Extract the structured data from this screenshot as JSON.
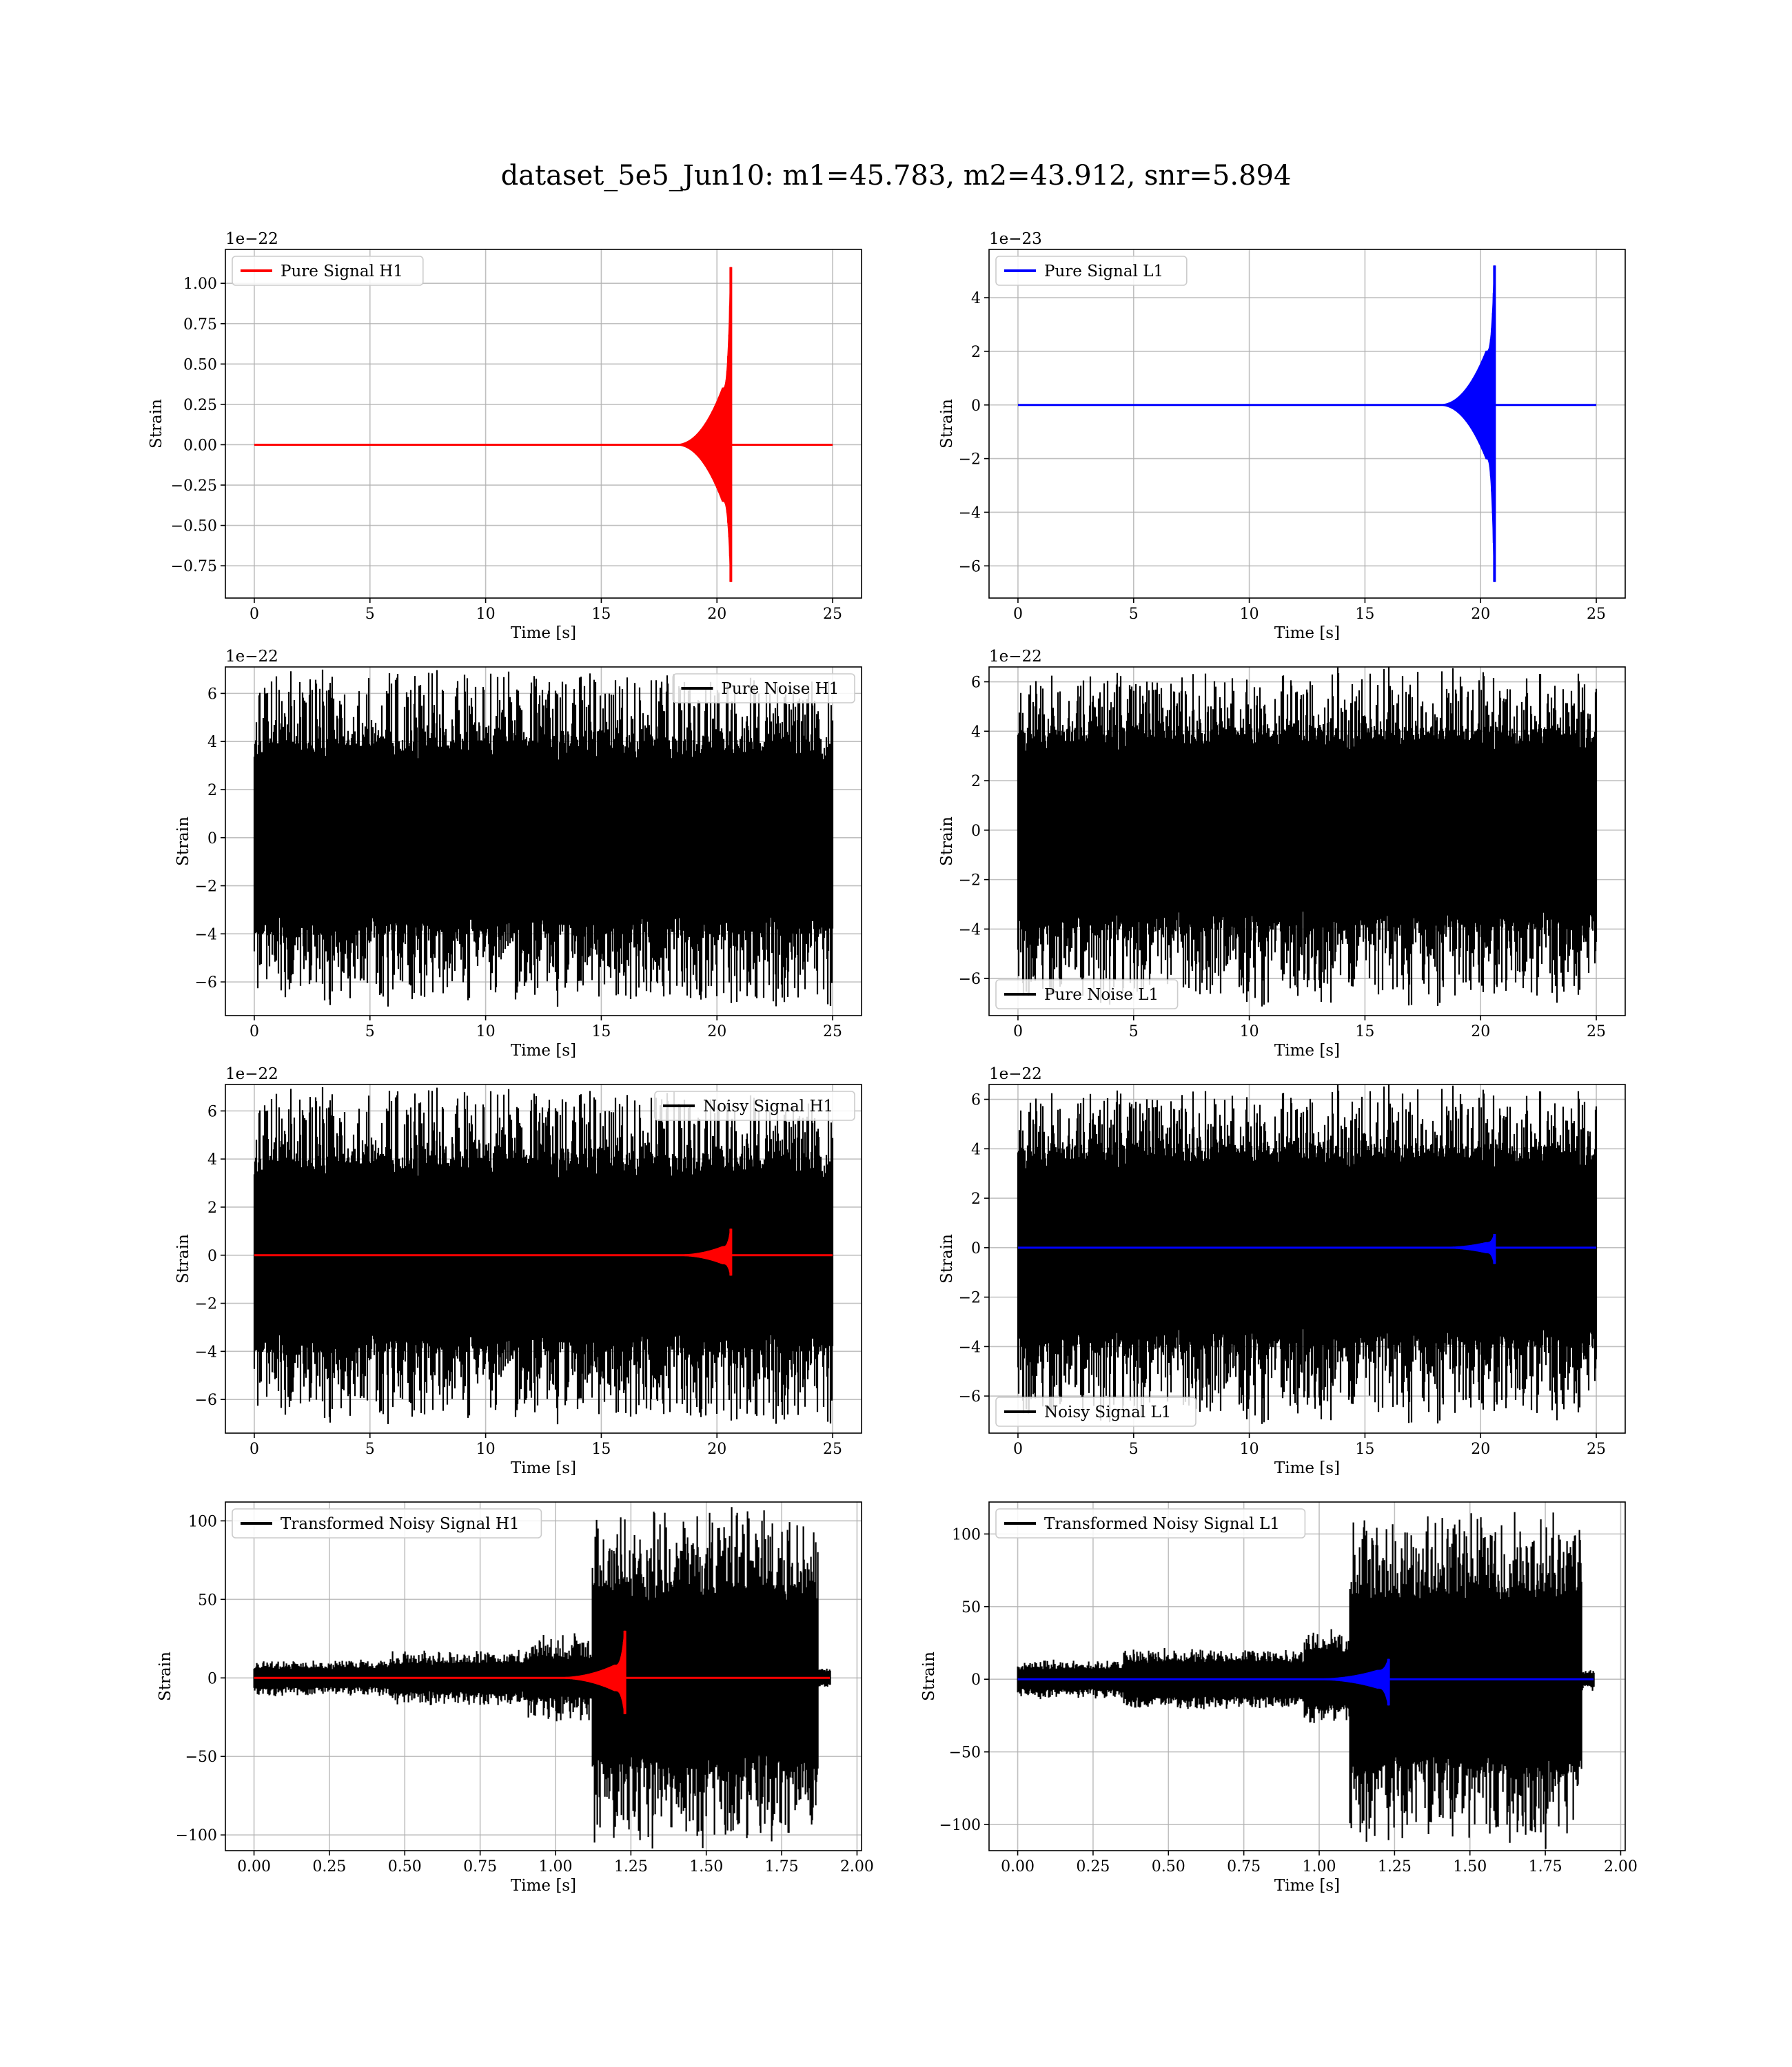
{
  "figure": {
    "title": "dataset_5e5_Jun10: m1=45.783, m2=43.912, snr=5.894"
  },
  "chart_data": [
    {
      "id": "pure-signal-h1",
      "type": "line",
      "xlabel": "Time [s]",
      "ylabel": "Strain",
      "offset": "1e−22",
      "xlim": [
        -1.25,
        26.25
      ],
      "ylim": [
        -0.95,
        1.21
      ],
      "xticks": [
        0,
        5,
        10,
        15,
        20,
        25
      ],
      "xtick_labels": [
        "0",
        "5",
        "10",
        "15",
        "20",
        "25"
      ],
      "yticks": [
        -0.75,
        -0.5,
        -0.25,
        0.0,
        0.25,
        0.5,
        0.75,
        1.0
      ],
      "ytick_labels": [
        "−0.75",
        "−0.50",
        "−0.25",
        "0.00",
        "0.25",
        "0.50",
        "0.75",
        "1.00"
      ],
      "grid": true,
      "legend_loc": "upper left",
      "series": [
        {
          "name": "Pure Signal H1",
          "color": "#ff0000",
          "kind": "chirp",
          "x": [
            0,
            25
          ],
          "merger_t": 20.6,
          "pre_peak": [
            0.35,
            -0.35
          ],
          "peak": [
            1.1,
            -0.85
          ],
          "start_t": 18.2
        }
      ]
    },
    {
      "id": "pure-signal-l1",
      "type": "line",
      "xlabel": "Time [s]",
      "ylabel": "Strain",
      "offset": "1e−23",
      "xlim": [
        -1.25,
        26.25
      ],
      "ylim": [
        -7.2,
        5.8
      ],
      "xticks": [
        0,
        5,
        10,
        15,
        20,
        25
      ],
      "xtick_labels": [
        "0",
        "5",
        "10",
        "15",
        "20",
        "25"
      ],
      "yticks": [
        -6,
        -4,
        -2,
        0,
        2,
        4
      ],
      "ytick_labels": [
        "−6",
        "−4",
        "−2",
        "0",
        "2",
        "4"
      ],
      "grid": true,
      "legend_loc": "upper left",
      "series": [
        {
          "name": "Pure Signal L1",
          "color": "#0000ff",
          "kind": "chirp",
          "x": [
            0,
            25
          ],
          "merger_t": 20.6,
          "pre_peak": [
            2.0,
            -2.0
          ],
          "peak": [
            5.2,
            -6.6
          ],
          "start_t": 18.2
        }
      ]
    },
    {
      "id": "pure-noise-h1",
      "type": "line",
      "xlabel": "Time [s]",
      "ylabel": "Strain",
      "offset": "1e−22",
      "xlim": [
        -1.25,
        26.25
      ],
      "ylim": [
        -7.4,
        7.1
      ],
      "xticks": [
        0,
        5,
        10,
        15,
        20,
        25
      ],
      "xtick_labels": [
        "0",
        "5",
        "10",
        "15",
        "20",
        "25"
      ],
      "yticks": [
        -6,
        -4,
        -2,
        0,
        2,
        4,
        6
      ],
      "ytick_labels": [
        "−6",
        "−4",
        "−2",
        "0",
        "2",
        "4",
        "6"
      ],
      "grid": true,
      "legend_loc": "upper right",
      "series": [
        {
          "name": "Pure Noise H1",
          "color": "#000000",
          "kind": "noise",
          "x": [
            0,
            25
          ],
          "core": 3.5,
          "max": 6.6,
          "min": -6.7,
          "seed": 11
        }
      ]
    },
    {
      "id": "pure-noise-l1",
      "type": "line",
      "xlabel": "Time [s]",
      "ylabel": "Strain",
      "offset": "1e−22",
      "xlim": [
        -1.25,
        26.25
      ],
      "ylim": [
        -7.5,
        6.6
      ],
      "xticks": [
        0,
        5,
        10,
        15,
        20,
        25
      ],
      "xtick_labels": [
        "0",
        "5",
        "10",
        "15",
        "20",
        "25"
      ],
      "yticks": [
        -6,
        -4,
        -2,
        0,
        2,
        4,
        6
      ],
      "ytick_labels": [
        "−6",
        "−4",
        "−2",
        "0",
        "2",
        "4",
        "6"
      ],
      "grid": true,
      "legend_loc": "lower left",
      "series": [
        {
          "name": "Pure Noise L1",
          "color": "#000000",
          "kind": "noise",
          "x": [
            0,
            25
          ],
          "core": 3.5,
          "max": 6.2,
          "min": -6.8,
          "seed": 23
        }
      ]
    },
    {
      "id": "noisy-signal-h1",
      "type": "line",
      "xlabel": "Time [s]",
      "ylabel": "Strain",
      "offset": "1e−22",
      "xlim": [
        -1.25,
        26.25
      ],
      "ylim": [
        -7.4,
        7.1
      ],
      "xticks": [
        0,
        5,
        10,
        15,
        20,
        25
      ],
      "xtick_labels": [
        "0",
        "5",
        "10",
        "15",
        "20",
        "25"
      ],
      "yticks": [
        -6,
        -4,
        -2,
        0,
        2,
        4,
        6
      ],
      "ytick_labels": [
        "−6",
        "−4",
        "−2",
        "0",
        "2",
        "4",
        "6"
      ],
      "grid": true,
      "legend_loc": "upper right",
      "series": [
        {
          "name": "Noisy Signal H1",
          "color": "#000000",
          "kind": "noise",
          "x": [
            0,
            25
          ],
          "core": 3.5,
          "max": 6.6,
          "min": -6.7,
          "seed": 11
        },
        {
          "name": "",
          "color": "#ff0000",
          "kind": "chirp",
          "x": [
            0,
            25
          ],
          "merger_t": 20.6,
          "pre_peak": [
            0.35,
            -0.35
          ],
          "peak": [
            1.1,
            -0.85
          ],
          "start_t": 18.2
        }
      ]
    },
    {
      "id": "noisy-signal-l1",
      "type": "line",
      "xlabel": "Time [s]",
      "ylabel": "Strain",
      "offset": "1e−22",
      "xlim": [
        -1.25,
        26.25
      ],
      "ylim": [
        -7.5,
        6.6
      ],
      "xticks": [
        0,
        5,
        10,
        15,
        20,
        25
      ],
      "xtick_labels": [
        "0",
        "5",
        "10",
        "15",
        "20",
        "25"
      ],
      "yticks": [
        -6,
        -4,
        -2,
        0,
        2,
        4,
        6
      ],
      "ytick_labels": [
        "−6",
        "−4",
        "−2",
        "0",
        "2",
        "4",
        "6"
      ],
      "grid": true,
      "legend_loc": "lower left",
      "series": [
        {
          "name": "Noisy Signal L1",
          "color": "#000000",
          "kind": "noise",
          "x": [
            0,
            25
          ],
          "core": 3.5,
          "max": 6.2,
          "min": -6.8,
          "seed": 23
        },
        {
          "name": "",
          "color": "#0000ff",
          "kind": "chirp",
          "x": [
            0,
            25
          ],
          "merger_t": 20.6,
          "pre_peak": [
            0.2,
            -0.2
          ],
          "peak": [
            0.55,
            -0.66
          ],
          "start_t": 18.2
        }
      ]
    },
    {
      "id": "transformed-noisy-signal-h1",
      "type": "line",
      "xlabel": "Time [s]",
      "ylabel": "Strain",
      "offset": "",
      "xlim": [
        -0.095,
        2.015
      ],
      "ylim": [
        -110,
        112
      ],
      "xticks": [
        0,
        0.25,
        0.5,
        0.75,
        1.0,
        1.25,
        1.5,
        1.75,
        2.0
      ],
      "xtick_labels": [
        "0.00",
        "0.25",
        "0.50",
        "0.75",
        "1.00",
        "1.25",
        "1.50",
        "1.75",
        "2.00"
      ],
      "yticks": [
        -100,
        -50,
        0,
        50,
        100
      ],
      "ytick_labels": [
        "−100",
        "−50",
        "0",
        "50",
        "100"
      ],
      "grid": true,
      "legend_loc": "upper left",
      "series": [
        {
          "name": "Transformed Noisy Signal H1",
          "color": "#000000",
          "kind": "segnoise",
          "x": [
            0,
            1.91
          ],
          "seed": 37,
          "segments": [
            [
              0,
              0.45,
              6,
              11
            ],
            [
              0.45,
              0.9,
              9,
              17
            ],
            [
              0.9,
              1.12,
              12,
              27
            ],
            [
              1.12,
              1.87,
              52,
              103
            ],
            [
              1.87,
              1.91,
              4,
              6
            ]
          ]
        },
        {
          "name": "",
          "color": "#ff0000",
          "kind": "chirp",
          "x": [
            0,
            1.91
          ],
          "merger_t": 1.23,
          "pre_peak": [
            8,
            -8
          ],
          "peak": [
            30,
            -23
          ],
          "start_t": 1.0
        }
      ]
    },
    {
      "id": "transformed-noisy-signal-l1",
      "type": "line",
      "xlabel": "Time [s]",
      "ylabel": "Strain",
      "offset": "",
      "xlim": [
        -0.095,
        2.015
      ],
      "ylim": [
        -118,
        122
      ],
      "xticks": [
        0,
        0.25,
        0.5,
        0.75,
        1.0,
        1.25,
        1.5,
        1.75,
        2.0
      ],
      "xtick_labels": [
        "0.00",
        "0.25",
        "0.50",
        "0.75",
        "1.00",
        "1.25",
        "1.50",
        "1.75",
        "2.00"
      ],
      "yticks": [
        -100,
        -50,
        0,
        50,
        100
      ],
      "ytick_labels": [
        "−100",
        "−50",
        "0",
        "50",
        "100"
      ],
      "grid": true,
      "legend_loc": "upper left",
      "series": [
        {
          "name": "Transformed Noisy Signal L1",
          "color": "#000000",
          "kind": "segnoise",
          "x": [
            0,
            1.91
          ],
          "seed": 53,
          "segments": [
            [
              0,
              0.35,
              7,
              13
            ],
            [
              0.35,
              0.95,
              12,
              20
            ],
            [
              0.95,
              1.1,
              18,
              33
            ],
            [
              1.1,
              1.87,
              55,
              110
            ],
            [
              1.87,
              1.91,
              4,
              8
            ]
          ]
        },
        {
          "name": "",
          "color": "#0000ff",
          "kind": "chirp",
          "x": [
            0,
            1.91
          ],
          "merger_t": 1.23,
          "pre_peak": [
            6,
            -6
          ],
          "peak": [
            14,
            -18
          ],
          "start_t": 0.98
        }
      ]
    }
  ]
}
